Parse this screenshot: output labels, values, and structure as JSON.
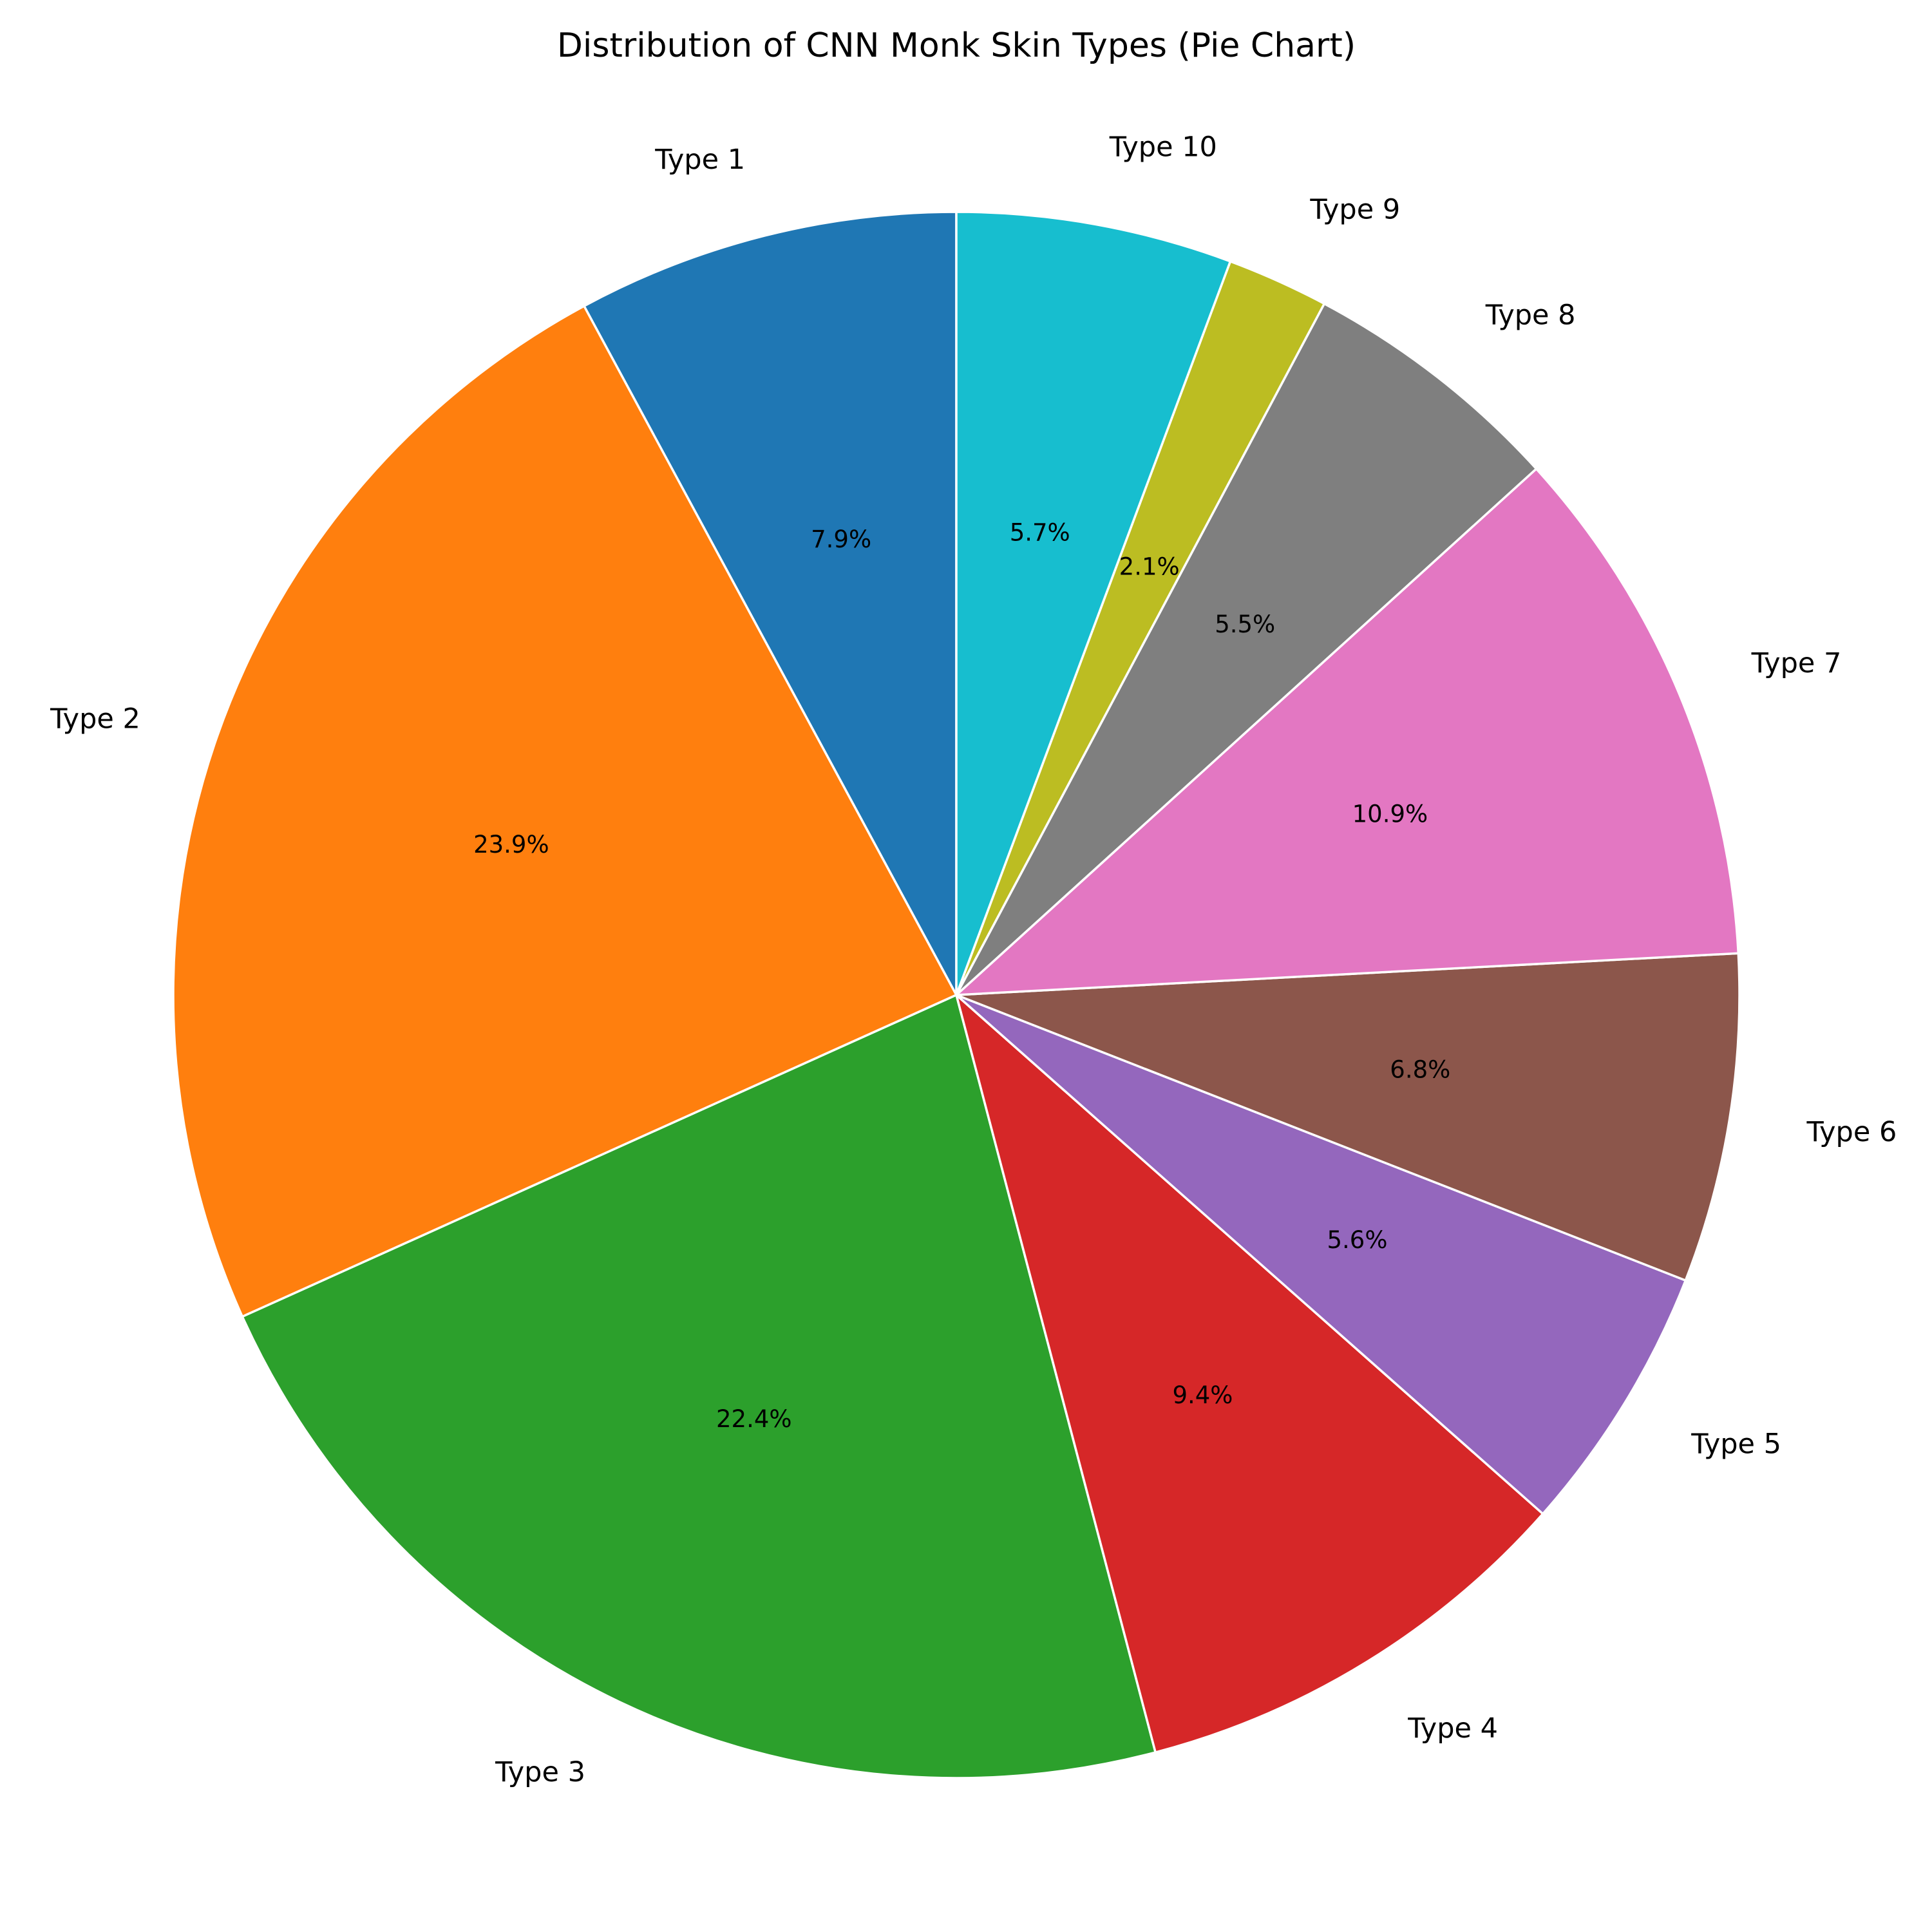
{
  "chart_data": {
    "type": "pie",
    "title": "Distribution of CNN Monk Skin Types (Pie Chart)",
    "start_angle_deg": 90,
    "direction": "counterclockwise",
    "wedge_edge_color": "#ffffff",
    "slices": [
      {
        "label": "Type 1",
        "value": 7.9,
        "pct_label": "7.9%",
        "color": "#1f77b4"
      },
      {
        "label": "Type 2",
        "value": 23.9,
        "pct_label": "23.9%",
        "color": "#ff7f0e"
      },
      {
        "label": "Type 3",
        "value": 22.4,
        "pct_label": "22.4%",
        "color": "#2ca02c"
      },
      {
        "label": "Type 4",
        "value": 9.4,
        "pct_label": "9.4%",
        "color": "#d62728"
      },
      {
        "label": "Type 5",
        "value": 5.6,
        "pct_label": "5.6%",
        "color": "#9467bd"
      },
      {
        "label": "Type 6",
        "value": 6.8,
        "pct_label": "6.8%",
        "color": "#8c564b"
      },
      {
        "label": "Type 7",
        "value": 10.9,
        "pct_label": "10.9%",
        "color": "#e377c2"
      },
      {
        "label": "Type 8",
        "value": 5.5,
        "pct_label": "5.5%",
        "color": "#7f7f7f"
      },
      {
        "label": "Type 9",
        "value": 2.1,
        "pct_label": "2.1%",
        "color": "#bcbd22"
      },
      {
        "label": "Type 10",
        "value": 5.7,
        "pct_label": "5.7%",
        "color": "#17becf"
      }
    ]
  }
}
